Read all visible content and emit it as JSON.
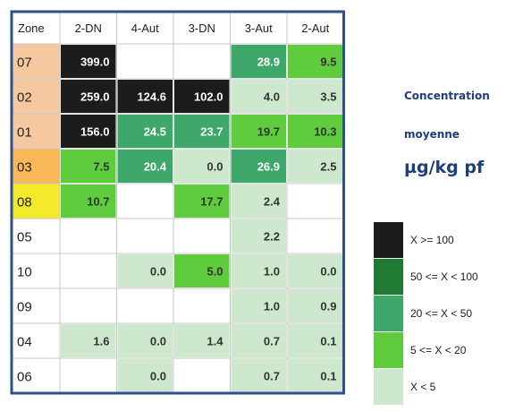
{
  "chart_data": {
    "type": "heatmap",
    "corner_label": "Zone",
    "columns": [
      "2-DN",
      "4-Aut",
      "3-DN",
      "3-Aut",
      "2-Aut"
    ],
    "rows": [
      "07",
      "02",
      "01",
      "03",
      "08",
      "05",
      "10",
      "09",
      "04",
      "06"
    ],
    "row_label_colors": [
      "#f6c8a0",
      "#f6c8a0",
      "#f6c8a0",
      "#f9b857",
      "#f4ea2a",
      "#ffffff",
      "#ffffff",
      "#ffffff",
      "#ffffff",
      "#ffffff"
    ],
    "values": [
      [
        "399.0",
        "",
        "",
        "28.9",
        "9.5"
      ],
      [
        "259.0",
        "124.6",
        "102.0",
        "4.0",
        "3.5"
      ],
      [
        "156.0",
        "24.5",
        "23.7",
        "19.7",
        "10.3"
      ],
      [
        "7.5",
        "20.4",
        "0.0",
        "26.9",
        "2.5"
      ],
      [
        "10.7",
        "",
        "17.7",
        "2.4",
        ""
      ],
      [
        "",
        "",
        "",
        "2.2",
        ""
      ],
      [
        "",
        "0.0",
        "5.0",
        "1.0",
        "0.0"
      ],
      [
        "",
        "",
        "",
        "1.0",
        "0.9"
      ],
      [
        "1.6",
        "0.0",
        "1.4",
        "0.7",
        "0.1"
      ],
      [
        "",
        "0.0",
        "",
        "0.7",
        "0.1"
      ]
    ],
    "legend": [
      {
        "label": "X >= 100",
        "color": "#1c1c1c"
      },
      {
        "label": "50 <= X < 100",
        "color": "#1f7a32"
      },
      {
        "label": "20 <= X < 50",
        "color": "#3ea86a"
      },
      {
        "label": "5 <= X < 20",
        "color": "#5fcc3e"
      },
      {
        "label": "X < 5",
        "color": "#cde8cd"
      }
    ],
    "caption": [
      "Concentration",
      "moyenne",
      "µg/kg pf"
    ]
  },
  "colors": {
    "border": "#2f4f8f",
    "grid": "#c9c9c9",
    "dark_text": "#ffffff",
    "light_text": "#333333"
  }
}
